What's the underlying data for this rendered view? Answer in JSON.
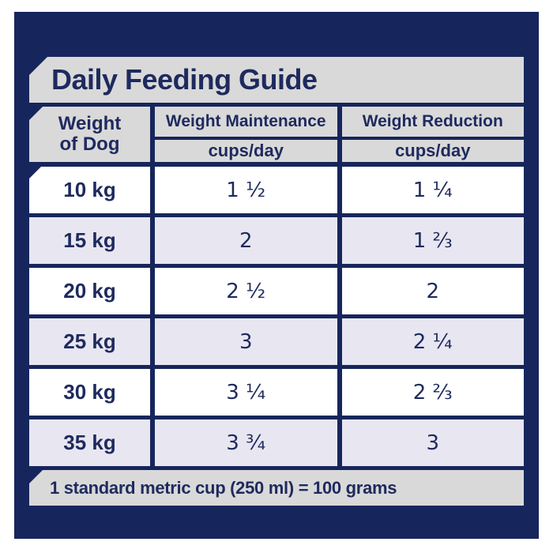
{
  "title": "Daily Feeding Guide",
  "table": {
    "columns": {
      "weight": {
        "line1": "Weight",
        "line2": "of Dog"
      },
      "maintenance": {
        "title": "Weight Maintenance",
        "unit": "cups/day"
      },
      "reduction": {
        "title": "Weight Reduction",
        "unit": "cups/day"
      }
    },
    "rows": [
      {
        "weight": "10 kg",
        "maintenance": "1 ½",
        "reduction": "1 ¼"
      },
      {
        "weight": "15 kg",
        "maintenance": "2",
        "reduction": "1 ⅔"
      },
      {
        "weight": "20 kg",
        "maintenance": "2 ½",
        "reduction": "2"
      },
      {
        "weight": "25 kg",
        "maintenance": "3",
        "reduction": "2 ¼"
      },
      {
        "weight": "30 kg",
        "maintenance": "3 ¼",
        "reduction": "2 ⅔"
      },
      {
        "weight": "35 kg",
        "maintenance": "3 ¾",
        "reduction": "3"
      }
    ]
  },
  "footer": {
    "note": "1 standard metric cup (250 ml) = 100 grams"
  },
  "colors": {
    "panel_navy": "#16265c",
    "banner_gray": "#d9d9d9",
    "row_white": "#ffffff",
    "row_alt_lavender": "#e8e6f1",
    "text_navy": "#1e2a5e"
  }
}
